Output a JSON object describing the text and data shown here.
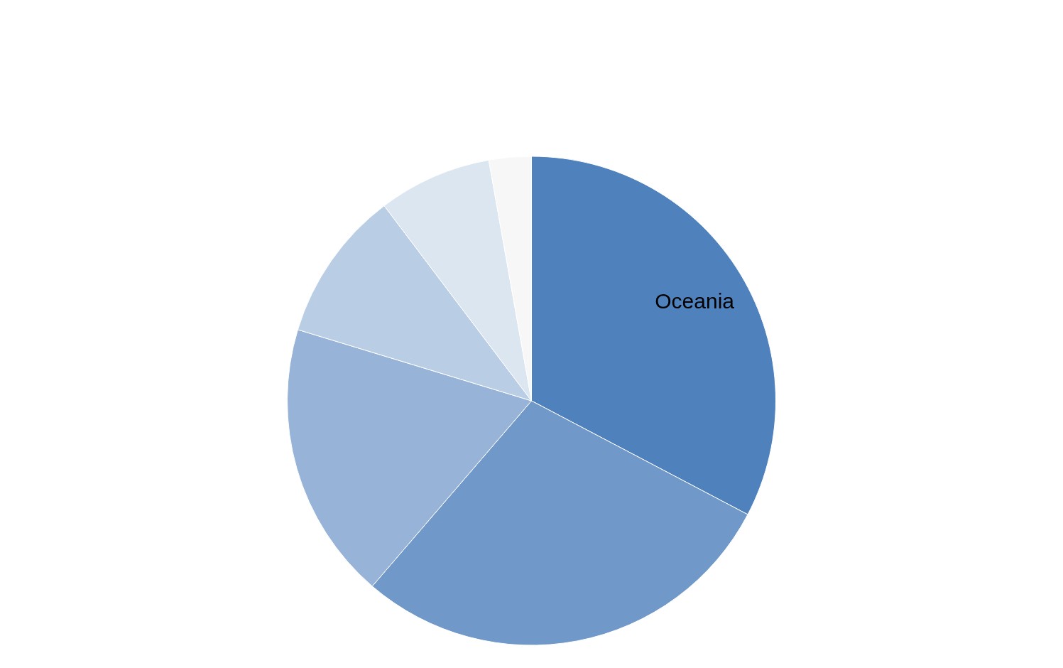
{
  "chart_data": {
    "type": "pie",
    "categories": [
      "Oceania",
      null,
      null,
      null,
      null,
      null
    ],
    "values": [
      32.7,
      28.6,
      18.4,
      10.0,
      7.5,
      2.8
    ],
    "colors": [
      "#4f81bd",
      "#7099c9",
      "#97b3d7",
      "#b9cde4",
      "#dce6f1",
      "#f7f7f7"
    ],
    "legend": false
  }
}
